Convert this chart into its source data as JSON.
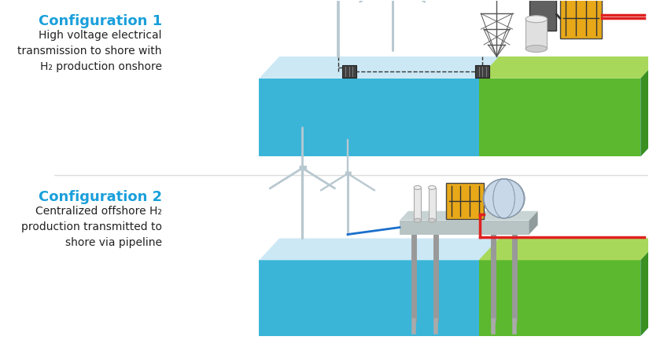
{
  "bg_color": "#ffffff",
  "config1_title": "Configuration 1",
  "config1_lines": [
    "High voltage electrical",
    "transmission to shore with",
    "H₂ production onshore"
  ],
  "config2_title": "Configuration 2",
  "config2_lines": [
    "Centralized offshore H₂",
    "production transmitted to",
    "shore via pipeline"
  ],
  "title_color": "#1a9fdb",
  "text_color": "#222222",
  "ocean_top_color": "#cce8f5",
  "ocean_face_color": "#3ab5d8",
  "ocean_side_color": "#2a9ec0",
  "land_top_light": "#a8d85a",
  "land_top_dark": "#7dc840",
  "land_face_light": "#5cb82e",
  "land_face_dark": "#3a9020",
  "turbine_color": "#b8c8d0",
  "cable_color": "#333333",
  "red_color": "#e02020",
  "blue_color": "#1a6fcc",
  "yellow_color": "#e8a818",
  "gray_color": "#888888",
  "dark_gray": "#555555",
  "platform_color": "#b8c4c4"
}
